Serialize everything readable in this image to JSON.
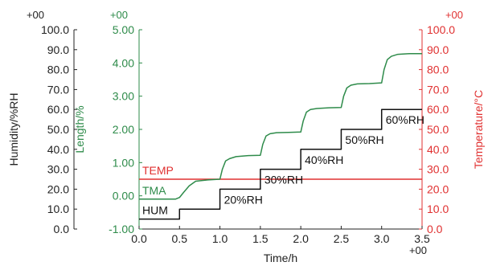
{
  "chart_data": {
    "type": "line",
    "xlabel": "Time/h",
    "x_exponent": "+00",
    "xlim": [
      0.0,
      3.5
    ],
    "x_ticks": [
      "0.0",
      "0.5",
      "1.0",
      "1.5",
      "2.0",
      "2.5",
      "3.0",
      "3.5"
    ],
    "axes": {
      "humidity": {
        "label": "Humidity/%RH",
        "exponent": "+00",
        "range": [
          0,
          100
        ],
        "ticks": [
          "0.0",
          "10.0",
          "20.0",
          "30.0",
          "40.0",
          "50.0",
          "60.0",
          "70.0",
          "80.0",
          "90.0",
          "100.0"
        ],
        "color": "#222222"
      },
      "length": {
        "label": "Length/%",
        "exponent": "+00",
        "range": [
          -1.0,
          5.0
        ],
        "ticks": [
          "-1.00",
          "0.00",
          "1.00",
          "2.00",
          "3.00",
          "4.00",
          "5.00"
        ],
        "color": "#2e8b4a"
      },
      "temperature": {
        "label": "Temperature/°C",
        "exponent": "+00",
        "range": [
          0,
          100
        ],
        "ticks": [
          "0.0",
          "10.0",
          "20.0",
          "30.0",
          "40.0",
          "50.0",
          "60.0",
          "70.0",
          "80.0",
          "90.0",
          "100.0"
        ],
        "color": "#e03030"
      }
    },
    "series": [
      {
        "name": "TEMP",
        "axis": "temperature",
        "color": "#e03030",
        "x": [
          0.0,
          3.5
        ],
        "y": [
          25.0,
          25.0
        ]
      },
      {
        "name": "TMA",
        "axis": "length",
        "color": "#2e8b4a",
        "x": [
          0.0,
          0.3,
          0.45,
          0.5,
          0.55,
          0.62,
          0.7,
          0.85,
          1.0,
          1.03,
          1.07,
          1.12,
          1.2,
          1.35,
          1.5,
          1.53,
          1.57,
          1.62,
          1.7,
          1.85,
          2.0,
          2.03,
          2.07,
          2.12,
          2.2,
          2.35,
          2.5,
          2.53,
          2.57,
          2.62,
          2.7,
          2.85,
          3.0,
          3.03,
          3.07,
          3.12,
          3.2,
          3.35,
          3.5
        ],
        "y": [
          -0.1,
          -0.1,
          -0.1,
          -0.05,
          0.1,
          0.3,
          0.44,
          0.48,
          0.5,
          0.8,
          1.05,
          1.12,
          1.18,
          1.21,
          1.22,
          1.55,
          1.8,
          1.87,
          1.9,
          1.91,
          1.92,
          2.25,
          2.52,
          2.6,
          2.63,
          2.65,
          2.66,
          3.0,
          3.25,
          3.33,
          3.37,
          3.38,
          3.4,
          3.8,
          4.1,
          4.2,
          4.26,
          4.28,
          4.28
        ]
      },
      {
        "name": "HUM",
        "axis": "humidity",
        "color": "#111111",
        "x": [
          0.0,
          0.5,
          0.5,
          1.0,
          1.0,
          1.5,
          1.5,
          2.0,
          2.0,
          2.5,
          2.5,
          3.0,
          3.0,
          3.5
        ],
        "y": [
          5.0,
          5.0,
          10.0,
          10.0,
          20.0,
          20.0,
          30.0,
          30.0,
          40.0,
          40.0,
          50.0,
          50.0,
          60.0,
          60.0
        ]
      }
    ],
    "annotations": [
      {
        "text": "20%RH",
        "x": 1.0,
        "y": 20.0
      },
      {
        "text": "30%RH",
        "x": 1.5,
        "y": 30.0
      },
      {
        "text": "40%RH",
        "x": 2.0,
        "y": 40.0
      },
      {
        "text": "50%RH",
        "x": 2.5,
        "y": 50.0
      },
      {
        "text": "60%RH",
        "x": 3.0,
        "y": 60.0
      }
    ]
  }
}
